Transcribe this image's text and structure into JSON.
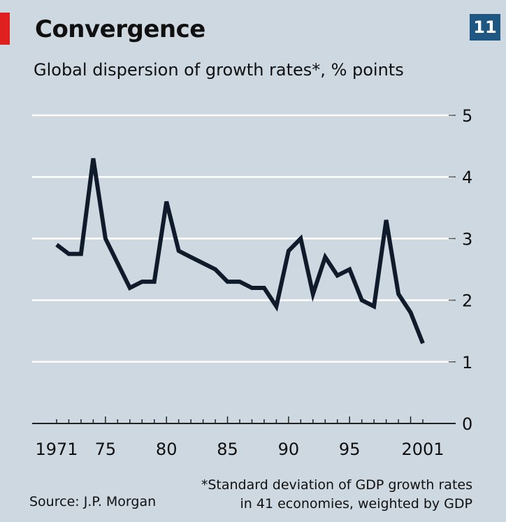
{
  "header": {
    "title": "Convergence",
    "badge": "11",
    "subtitle": "Global dispersion of growth rates*, % points"
  },
  "footer": {
    "source": "Source: J.P. Morgan",
    "note_line1": "*Standard deviation of GDP growth rates",
    "note_line2": "in 41 economies, weighted by GDP"
  },
  "colors": {
    "background": "#cdd8e0",
    "line": "#0f1a2b",
    "gridline": "#ffffff",
    "badge": "#1f5783",
    "accent": "#e01f1f"
  },
  "chart_data": {
    "type": "line",
    "title": "Convergence",
    "subtitle": "Global dispersion of growth rates*, % points",
    "x_tick_labels": [
      {
        "x": 1971,
        "label": "1971"
      },
      {
        "x": 1975,
        "label": "75"
      },
      {
        "x": 1980,
        "label": "80"
      },
      {
        "x": 1985,
        "label": "85"
      },
      {
        "x": 1990,
        "label": "90"
      },
      {
        "x": 1995,
        "label": "95"
      },
      {
        "x": 2001,
        "label": "2001"
      }
    ],
    "y_ticks": [
      0,
      1,
      2,
      3,
      4,
      5
    ],
    "xlim": [
      1970,
      2003
    ],
    "ylim": [
      0,
      5
    ],
    "y_axis_side": "right",
    "grid": true,
    "series": [
      {
        "x": [
          1971,
          1972,
          1973,
          1974,
          1975,
          1976,
          1977,
          1978,
          1979,
          1980,
          1981,
          1982,
          1983,
          1984,
          1985,
          1986,
          1987,
          1988,
          1989,
          1990,
          1991,
          1992,
          1993,
          1994,
          1995,
          1996,
          1997,
          1998,
          1999,
          2000,
          2001
        ],
        "y": [
          2.9,
          2.75,
          2.75,
          4.3,
          3.0,
          2.6,
          2.2,
          2.3,
          2.3,
          3.6,
          2.8,
          2.7,
          2.6,
          2.5,
          2.3,
          2.3,
          2.2,
          2.2,
          1.9,
          2.8,
          3.0,
          2.1,
          2.7,
          2.4,
          2.5,
          2.0,
          1.9,
          3.3,
          2.1,
          1.8,
          1.3
        ]
      }
    ]
  }
}
